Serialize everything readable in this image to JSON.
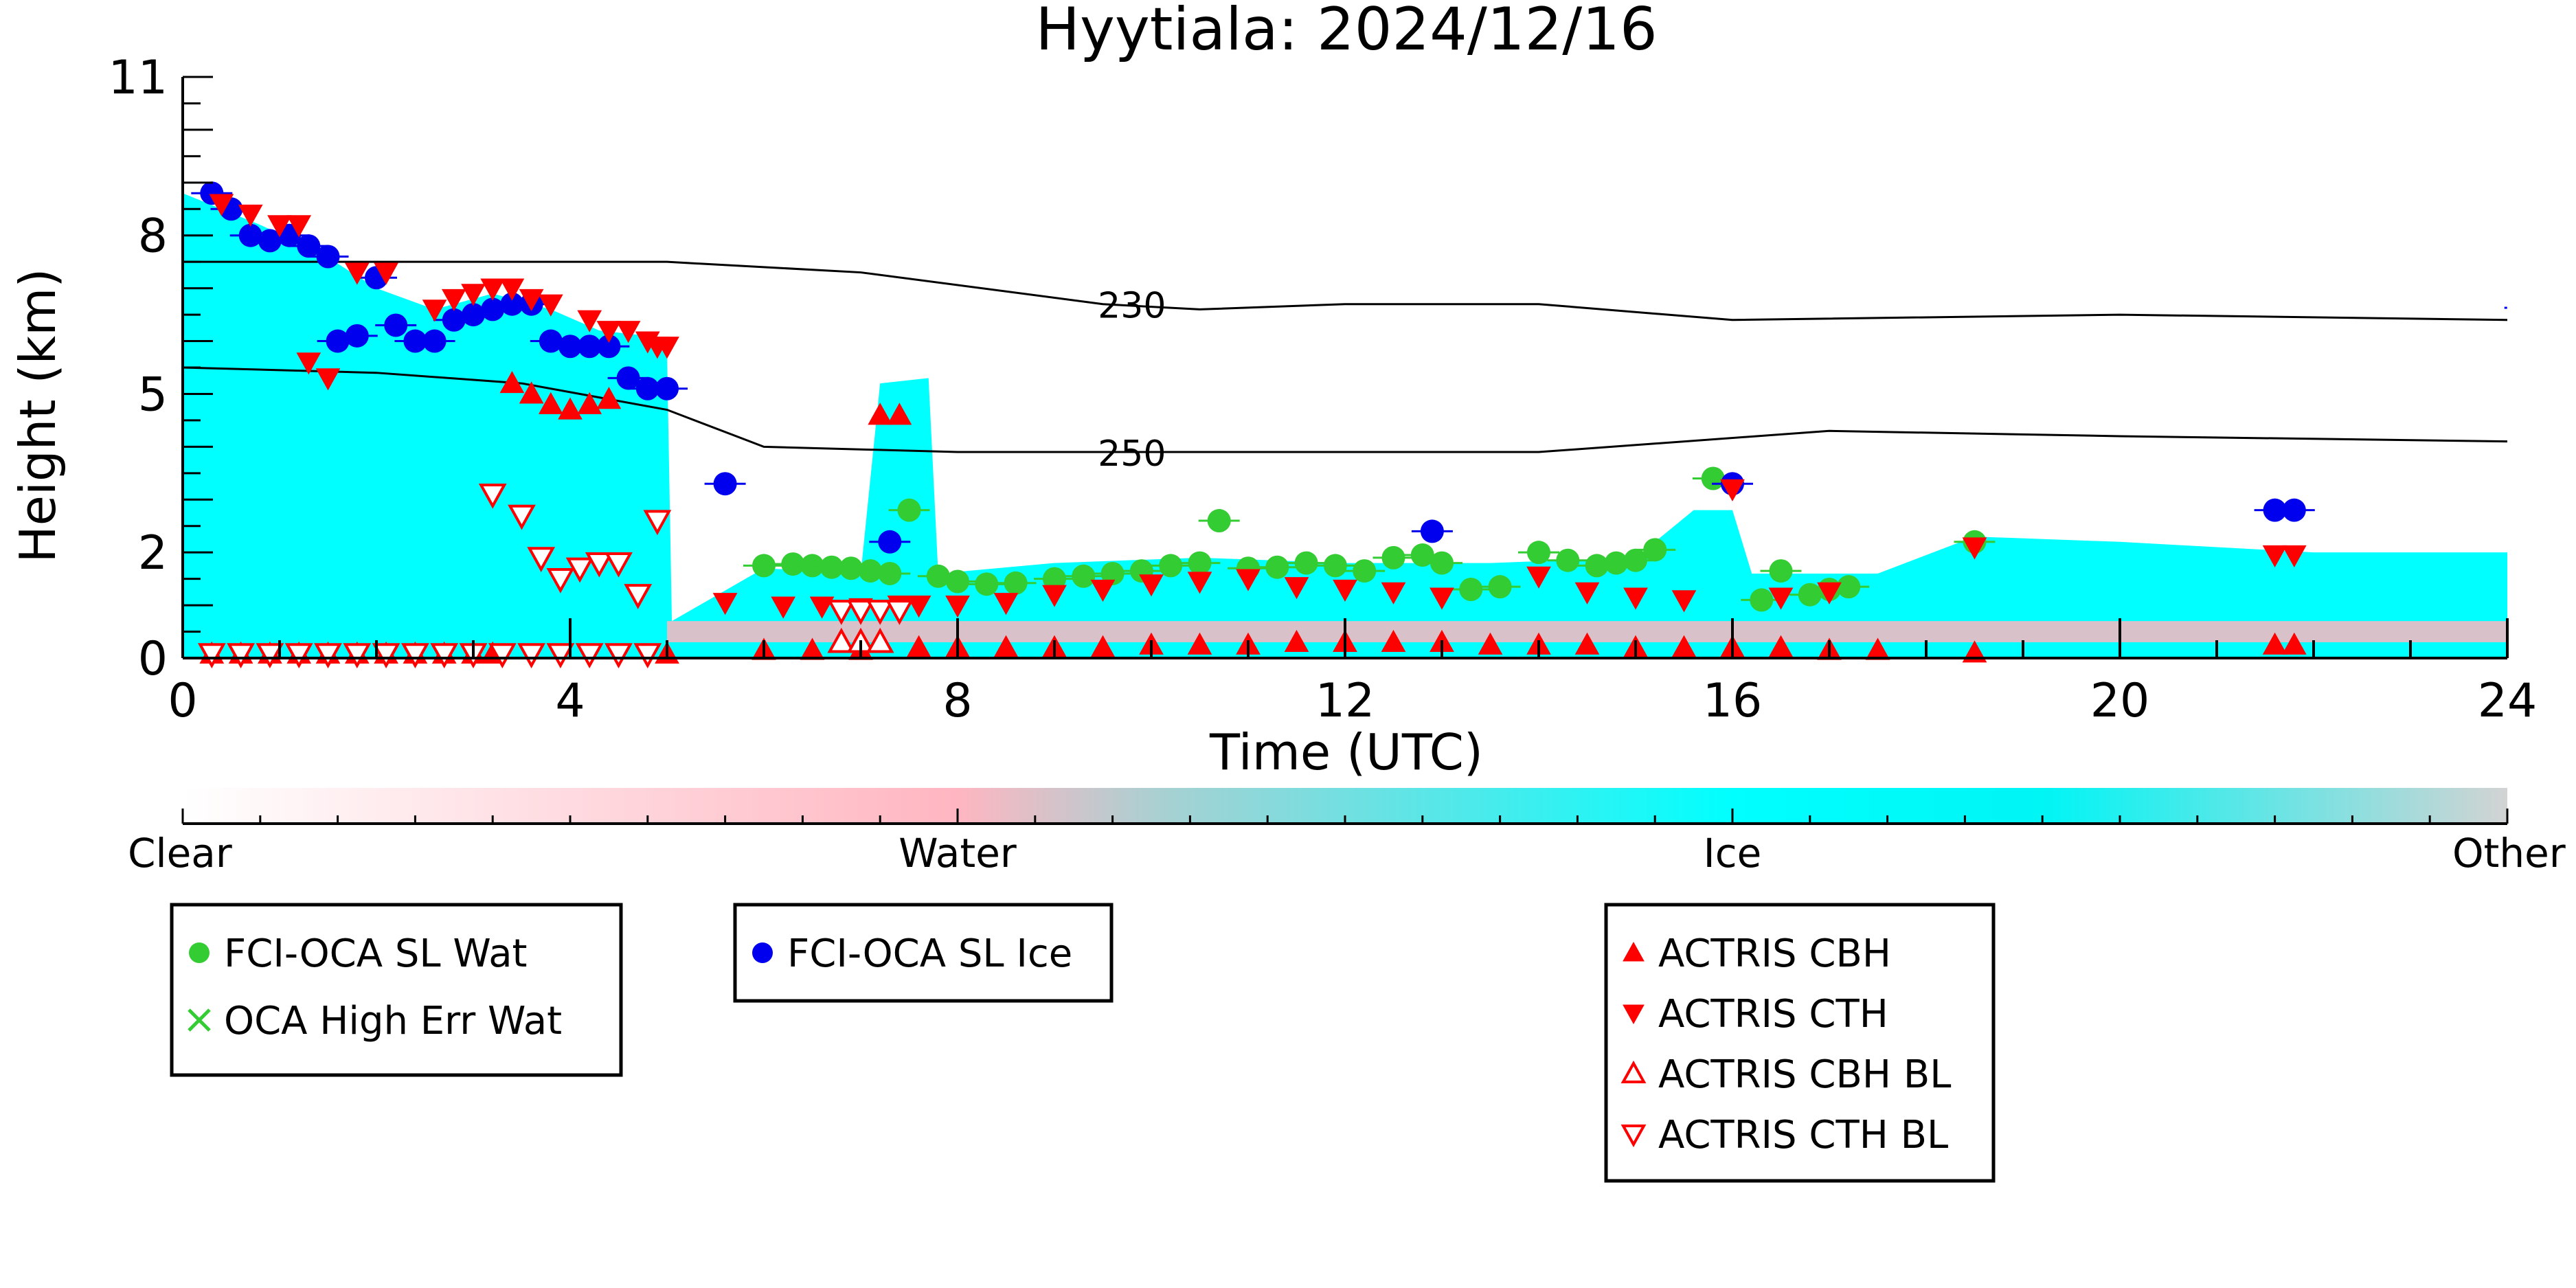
{
  "chart_data": {
    "type": "scatter",
    "title": "Hyytiala: 2024/12/16",
    "xlabel": "Time (UTC)",
    "ylabel": "Height (km)",
    "xlim": [
      0,
      24
    ],
    "ylim": [
      0,
      11
    ],
    "xticks": [
      0,
      4,
      8,
      12,
      16,
      20,
      24
    ],
    "xtick_labels": [
      "0",
      "4",
      "8",
      "12",
      "16",
      "20",
      "24"
    ],
    "yticks": [
      0,
      2,
      5,
      8,
      11
    ],
    "ytick_labels": [
      "0",
      "2",
      "5",
      "8",
      "11"
    ],
    "background": {
      "description_key": "classification",
      "colorbar_labels": [
        "Clear",
        "Water",
        "Ice",
        "Other"
      ],
      "colors": {
        "Clear": "#ffffff",
        "Water": "#ffb6c1",
        "Ice": "#00ffff",
        "Other": "#d3d3d3"
      },
      "ice_top_profile": [
        [
          0.0,
          8.8
        ],
        [
          0.8,
          8.2
        ],
        [
          1.4,
          7.7
        ],
        [
          2.0,
          7.0
        ],
        [
          2.6,
          6.6
        ],
        [
          3.2,
          6.9
        ],
        [
          3.8,
          6.6
        ],
        [
          4.3,
          6.2
        ],
        [
          4.8,
          6.1
        ],
        [
          5.0,
          5.8
        ],
        [
          5.05,
          0.7
        ],
        [
          6.0,
          1.7
        ],
        [
          7.0,
          1.6
        ],
        [
          7.2,
          5.2
        ],
        [
          7.7,
          5.3
        ],
        [
          7.8,
          1.6
        ],
        [
          9.0,
          1.8
        ],
        [
          10.5,
          1.9
        ],
        [
          12.0,
          1.8
        ],
        [
          13.5,
          1.8
        ],
        [
          15.0,
          1.9
        ],
        [
          15.6,
          2.8
        ],
        [
          16.0,
          2.8
        ],
        [
          16.2,
          1.6
        ],
        [
          17.5,
          1.6
        ],
        [
          18.5,
          2.3
        ],
        [
          20.0,
          2.2
        ],
        [
          22.0,
          2.0
        ],
        [
          24.0,
          2.0
        ]
      ],
      "water_band_height": [
        0.3,
        0.7
      ]
    },
    "contours": [
      {
        "label": "230",
        "x": [
          0,
          2,
          4,
          5,
          7,
          9.5,
          10.5,
          12,
          14,
          16,
          20,
          24
        ],
        "y": [
          7.5,
          7.5,
          7.5,
          7.5,
          7.3,
          6.7,
          6.6,
          6.7,
          6.7,
          6.4,
          6.5,
          6.4
        ]
      },
      {
        "label": "250",
        "x": [
          0,
          2,
          3.5,
          5,
          6,
          8,
          11,
          14,
          17,
          20,
          24
        ],
        "y": [
          5.5,
          5.4,
          5.2,
          4.7,
          4.0,
          3.9,
          3.9,
          3.9,
          4.3,
          4.2,
          4.1
        ]
      }
    ],
    "series": [
      {
        "name": "FCI-OCA SL Wat",
        "marker": "circle",
        "color": "#33cc33",
        "x": [
          6.0,
          6.3,
          6.5,
          6.7,
          6.9,
          7.1,
          7.3,
          7.5,
          7.8,
          8.0,
          8.3,
          8.6,
          9.0,
          9.3,
          9.6,
          9.9,
          10.2,
          10.5,
          10.7,
          11.0,
          11.3,
          11.6,
          11.9,
          12.2,
          12.5,
          12.8,
          13.0,
          13.3,
          13.6,
          14.0,
          14.3,
          14.6,
          14.8,
          15.0,
          15.2,
          15.8,
          16.3,
          16.5,
          16.8,
          17.0,
          17.2,
          18.5
        ],
        "y": [
          1.75,
          1.78,
          1.75,
          1.72,
          1.7,
          1.65,
          1.6,
          2.8,
          1.55,
          1.45,
          1.4,
          1.42,
          1.5,
          1.55,
          1.6,
          1.65,
          1.75,
          1.8,
          2.6,
          1.7,
          1.72,
          1.8,
          1.75,
          1.65,
          1.9,
          1.95,
          1.8,
          1.3,
          1.35,
          2.0,
          1.85,
          1.75,
          1.8,
          1.85,
          2.05,
          3.4,
          1.1,
          1.65,
          1.2,
          1.3,
          1.35,
          2.2
        ]
      },
      {
        "name": "OCA High Err Wat",
        "marker": "x",
        "color": "#33cc33",
        "x": [],
        "y": []
      },
      {
        "name": "FCI-OCA SL Ice",
        "marker": "circle",
        "color": "#0000ee",
        "x": [
          0.3,
          0.5,
          0.7,
          0.9,
          1.1,
          1.3,
          1.5,
          1.6,
          1.8,
          2.0,
          2.2,
          2.4,
          2.6,
          2.8,
          3.0,
          3.2,
          3.4,
          3.6,
          3.8,
          4.0,
          4.2,
          4.4,
          4.6,
          4.8,
          5.0,
          5.6,
          7.3,
          12.9,
          16.0,
          21.6,
          21.8
        ],
        "y": [
          8.8,
          8.5,
          8.0,
          7.9,
          8.0,
          7.8,
          7.6,
          6.0,
          6.1,
          7.2,
          6.3,
          6.0,
          6.0,
          6.4,
          6.5,
          6.6,
          6.7,
          6.7,
          6.0,
          5.9,
          5.9,
          5.9,
          5.3,
          5.1,
          5.1,
          3.3,
          2.2,
          2.4,
          3.3,
          2.8,
          2.8
        ]
      },
      {
        "name": "ACTRIS CBH",
        "marker": "triangle-up",
        "color": "#ff0000",
        "x": [
          0.3,
          0.6,
          0.9,
          1.2,
          1.5,
          1.8,
          2.1,
          2.4,
          2.7,
          3.0,
          3.2,
          3.4,
          3.6,
          3.8,
          4.0,
          4.2,
          4.4,
          5.0,
          6.0,
          6.5,
          7.0,
          7.2,
          7.4,
          7.6,
          8.0,
          8.5,
          9.0,
          9.5,
          10.0,
          10.5,
          11.0,
          11.5,
          12.0,
          12.5,
          13.0,
          13.5,
          14.0,
          14.5,
          15.0,
          15.5,
          16.0,
          16.5,
          17.0,
          17.5,
          18.5,
          21.6,
          21.8
        ],
        "y": [
          0.08,
          0.08,
          0.08,
          0.08,
          0.08,
          0.08,
          0.08,
          0.08,
          0.08,
          0.08,
          0.08,
          5.2,
          5.0,
          4.8,
          4.7,
          4.8,
          4.9,
          0.08,
          0.15,
          0.15,
          0.15,
          4.6,
          4.6,
          0.2,
          0.2,
          0.2,
          0.2,
          0.2,
          0.25,
          0.25,
          0.25,
          0.3,
          0.3,
          0.3,
          0.3,
          0.25,
          0.25,
          0.25,
          0.2,
          0.2,
          0.2,
          0.2,
          0.15,
          0.15,
          0.1,
          0.25,
          0.25
        ]
      },
      {
        "name": "ACTRIS CTH",
        "marker": "triangle-down",
        "color": "#ff0000",
        "x": [
          0.4,
          0.7,
          1.0,
          1.2,
          1.3,
          1.5,
          1.8,
          2.1,
          2.6,
          2.8,
          3.0,
          3.2,
          3.4,
          3.6,
          3.8,
          4.2,
          4.4,
          4.6,
          4.8,
          4.9,
          5.0,
          5.6,
          6.2,
          6.6,
          7.0,
          7.4,
          7.6,
          8.0,
          8.5,
          9.0,
          9.5,
          10.0,
          10.5,
          11.0,
          11.5,
          12.0,
          12.5,
          13.0,
          14.0,
          14.5,
          15.0,
          15.5,
          16.0,
          16.5,
          17.0,
          18.5,
          21.6,
          21.8
        ],
        "y": [
          8.6,
          8.4,
          8.2,
          8.2,
          5.6,
          5.3,
          7.3,
          7.3,
          6.6,
          6.8,
          6.9,
          7.0,
          7.0,
          6.8,
          6.7,
          6.4,
          6.2,
          6.2,
          6.0,
          5.9,
          5.9,
          1.05,
          0.98,
          0.98,
          0.95,
          1.0,
          1.0,
          1.0,
          1.05,
          1.2,
          1.3,
          1.4,
          1.45,
          1.5,
          1.35,
          1.3,
          1.25,
          1.15,
          1.55,
          1.25,
          1.15,
          1.1,
          3.2,
          1.15,
          1.25,
          2.1,
          1.95,
          1.95
        ]
      },
      {
        "name": "ACTRIS CBH BL",
        "marker": "triangle-up-open",
        "color": "#ff0000",
        "x": [
          6.8,
          7.0,
          7.2
        ],
        "y": [
          0.3,
          0.3,
          0.3
        ]
      },
      {
        "name": "ACTRIS CTH BL",
        "marker": "triangle-down-open",
        "color": "#ff0000",
        "x": [
          0.3,
          0.6,
          0.9,
          1.2,
          1.5,
          1.8,
          2.1,
          2.4,
          2.7,
          3.0,
          3.3,
          3.6,
          3.9,
          4.2,
          4.5,
          4.8,
          3.2,
          3.5,
          3.7,
          3.9,
          4.1,
          4.3,
          4.5,
          4.7,
          4.9,
          6.8,
          7.0,
          7.2,
          7.4
        ],
        "y": [
          0.08,
          0.08,
          0.08,
          0.08,
          0.08,
          0.08,
          0.08,
          0.08,
          0.08,
          0.08,
          0.08,
          0.08,
          0.08,
          0.08,
          0.08,
          0.08,
          3.1,
          2.7,
          1.9,
          1.5,
          1.7,
          1.8,
          1.8,
          1.2,
          2.6,
          0.9,
          0.9,
          0.9,
          0.9
        ]
      }
    ],
    "legend_boxes": [
      [
        "FCI-OCA SL Wat",
        "OCA High Err Wat"
      ],
      [
        "FCI-OCA SL Ice"
      ],
      [
        "ACTRIS CBH",
        "ACTRIS CTH",
        "ACTRIS CBH BL",
        "ACTRIS CTH BL"
      ]
    ]
  }
}
